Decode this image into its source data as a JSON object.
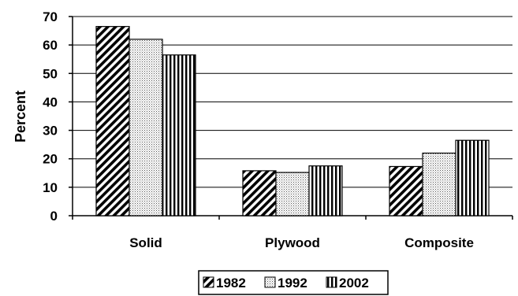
{
  "chart_data": {
    "type": "bar",
    "title": "",
    "xlabel": "",
    "ylabel": "Percent",
    "ylim": [
      0,
      70
    ],
    "yticks": [
      0,
      10,
      20,
      30,
      40,
      50,
      60,
      70
    ],
    "grid": true,
    "legend_position": "bottom",
    "categories": [
      "Solid",
      "Plywood",
      "Composite"
    ],
    "series": [
      {
        "name": "1982",
        "values": [
          66.5,
          15.8,
          17.3
        ],
        "pattern": "diagonal-hatch"
      },
      {
        "name": "1992",
        "values": [
          62,
          15.2,
          22
        ],
        "pattern": "dots"
      },
      {
        "name": "2002",
        "values": [
          56.5,
          17.5,
          26.5
        ],
        "pattern": "vertical-stripes"
      }
    ]
  }
}
